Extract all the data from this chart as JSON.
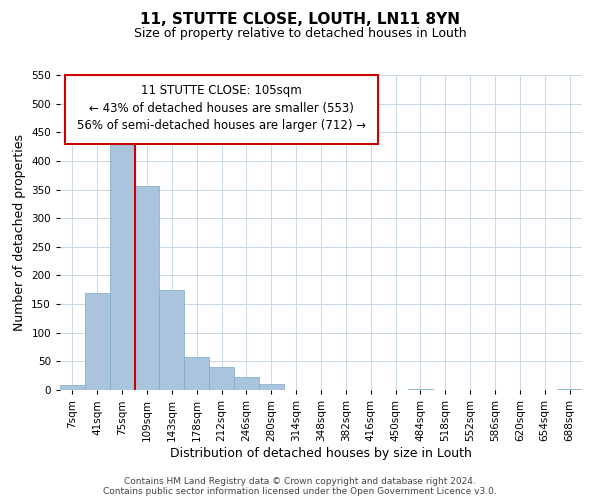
{
  "title": "11, STUTTE CLOSE, LOUTH, LN11 8YN",
  "subtitle": "Size of property relative to detached houses in Louth",
  "xlabel": "Distribution of detached houses by size in Louth",
  "ylabel": "Number of detached properties",
  "footer_line1": "Contains HM Land Registry data © Crown copyright and database right 2024.",
  "footer_line2": "Contains public sector information licensed under the Open Government Licence v3.0.",
  "annotation_title": "11 STUTTE CLOSE: 105sqm",
  "annotation_line2": "← 43% of detached houses are smaller (553)",
  "annotation_line3": "56% of semi-detached houses are larger (712) →",
  "bin_labels": [
    "7sqm",
    "41sqm",
    "75sqm",
    "109sqm",
    "143sqm",
    "178sqm",
    "212sqm",
    "246sqm",
    "280sqm",
    "314sqm",
    "348sqm",
    "382sqm",
    "416sqm",
    "450sqm",
    "484sqm",
    "518sqm",
    "552sqm",
    "586sqm",
    "620sqm",
    "654sqm",
    "688sqm"
  ],
  "bar_values": [
    8,
    170,
    430,
    357,
    175,
    57,
    40,
    22,
    10,
    0,
    0,
    0,
    0,
    0,
    1,
    0,
    0,
    0,
    0,
    0,
    1
  ],
  "bar_color": "#aac4de",
  "bar_edgecolor": "#7aaac8",
  "vline_color": "#cc0000",
  "box_color": "#cc0000",
  "ylim": [
    0,
    550
  ],
  "yticks": [
    0,
    50,
    100,
    150,
    200,
    250,
    300,
    350,
    400,
    450,
    500,
    550
  ],
  "background_color": "#ffffff",
  "grid_color": "#c8d8e8",
  "title_fontsize": 11,
  "subtitle_fontsize": 9,
  "axis_label_fontsize": 9,
  "tick_fontsize": 7.5,
  "annotation_fontsize": 8.5,
  "footer_fontsize": 6.5
}
